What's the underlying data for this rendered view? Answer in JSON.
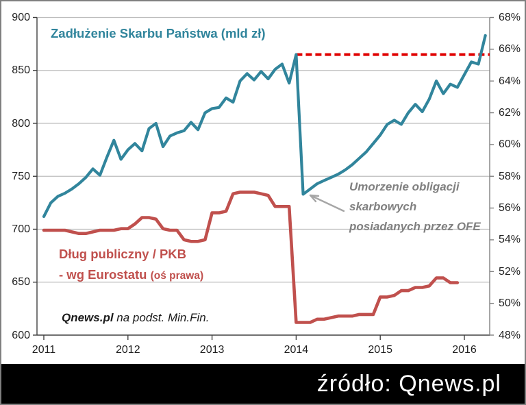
{
  "title": "Zadłużenie Skarbu Państwa (mld zł)",
  "legend": {
    "line1": "Dług publiczny / PKB",
    "line2": "- wg Eurostatu ",
    "line2_paren": "(oś prawa)"
  },
  "annotation": {
    "lines": [
      "Umorzenie obligacji",
      "skarbowych",
      "posiadanych przez OFE"
    ]
  },
  "credit": {
    "bold": "Qnews.pl",
    "rest": " na podst. Min.Fin."
  },
  "source_bar": {
    "text": "źródło: Qnews.pl"
  },
  "colors": {
    "debt_line": "#31859c",
    "ratio_line": "#c0504d",
    "reference_dashed": "#e00000",
    "annotation_gray": "#808080",
    "gridline": "#bdbdbd",
    "axis": "#404040",
    "axis_right": "#808080",
    "source_bar_bg": "#000000",
    "source_bar_text": "#ffffff"
  },
  "chart_data": {
    "type": "line",
    "title": "Zadłużenie Skarbu Państwa (mld zł)",
    "grid": true,
    "x_tick_labels": [
      "2011",
      "2012",
      "2013",
      "2014",
      "2015",
      "2016"
    ],
    "points_per_year": 12,
    "left_axis": {
      "min": 600,
      "max": 900,
      "step": 50,
      "tick_labels": [
        "900",
        "850",
        "800",
        "750",
        "700",
        "650",
        "600"
      ]
    },
    "right_axis": {
      "min": 48,
      "max": 68,
      "step": 2,
      "tick_labels": [
        "68%",
        "66%",
        "64%",
        "62%",
        "60%",
        "58%",
        "56%",
        "54%",
        "52%",
        "50%",
        "48%"
      ]
    },
    "series": [
      {
        "name": "Zadłużenie Skarbu Państwa (mld zł)",
        "axis": "left",
        "color": "#31859c",
        "start": "2011-01",
        "frequency": "monthly",
        "values": [
          712,
          725,
          731,
          734,
          738,
          743,
          749,
          757,
          751,
          768,
          784,
          766,
          775,
          781,
          774,
          795,
          800,
          778,
          788,
          791,
          793,
          801,
          794,
          810,
          814,
          815,
          824,
          820,
          840,
          847,
          841,
          849,
          842,
          851,
          856,
          838,
          865,
          733,
          738,
          743,
          746,
          749,
          752,
          756,
          761,
          767,
          773,
          781,
          789,
          799,
          803,
          799,
          810,
          818,
          811,
          823,
          840,
          828,
          837,
          834,
          846,
          858,
          856,
          883
        ]
      },
      {
        "name": "Dług publiczny / PKB - wg Eurostatu (oś prawa)",
        "axis": "right",
        "color": "#c0504d",
        "start": "2011-01",
        "frequency": "monthly",
        "values": [
          54.6,
          54.6,
          54.6,
          54.6,
          54.5,
          54.4,
          54.4,
          54.5,
          54.6,
          54.6,
          54.6,
          54.7,
          54.7,
          55.0,
          55.4,
          55.4,
          55.3,
          54.7,
          54.6,
          54.6,
          54.0,
          53.9,
          53.9,
          54.0,
          55.7,
          55.7,
          55.8,
          56.9,
          57.0,
          57.0,
          57.0,
          56.9,
          56.8,
          56.1,
          56.1,
          56.1,
          48.8,
          48.8,
          48.8,
          49.0,
          49.0,
          49.1,
          49.2,
          49.2,
          49.2,
          49.3,
          49.3,
          49.3,
          50.4,
          50.4,
          50.5,
          50.8,
          50.8,
          51.0,
          51.0,
          51.1,
          51.6,
          51.6,
          51.3,
          51.3
        ]
      }
    ],
    "reference_line": {
      "value": 865,
      "axis": "left",
      "style": "dashed",
      "color": "#e00000",
      "from_month_index": 36
    },
    "annotation_arrow_target": "2014-02 dip of debt line"
  }
}
